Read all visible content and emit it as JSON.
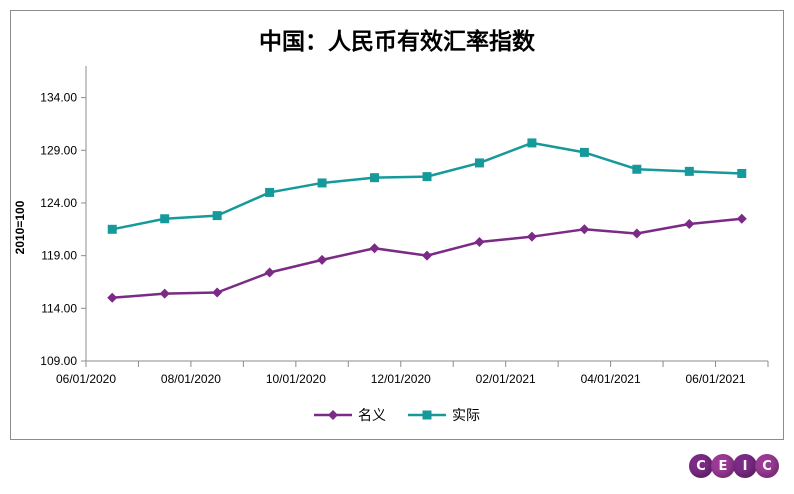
{
  "chart_data": {
    "type": "line",
    "title": "中国：人民币有效汇率指数",
    "ylabel": "2010=100",
    "xlabel": "",
    "ylim": [
      109,
      137
    ],
    "yticks": [
      "109.00",
      "114.00",
      "119.00",
      "124.00",
      "129.00",
      "134.00"
    ],
    "yticks_values": [
      109,
      114,
      119,
      124,
      129,
      134
    ],
    "xtick_labels": [
      "06/01/2020",
      "08/01/2020",
      "10/01/2020",
      "12/01/2020",
      "02/01/2021",
      "04/01/2021",
      "06/01/2021"
    ],
    "x": [
      "2020-06",
      "2020-07",
      "2020-08",
      "2020-09",
      "2020-10",
      "2020-11",
      "2020-12",
      "2021-01",
      "2021-02",
      "2021-03",
      "2021-04",
      "2021-05",
      "2021-06"
    ],
    "series": [
      {
        "name": "名义",
        "color": "#7b2a85",
        "marker": "diamond",
        "values": [
          115.0,
          115.4,
          115.5,
          117.4,
          118.6,
          119.7,
          119.0,
          120.3,
          120.8,
          121.5,
          121.1,
          122.0,
          122.5
        ]
      },
      {
        "name": "实际",
        "color": "#16999a",
        "marker": "square",
        "values": [
          121.5,
          122.5,
          122.8,
          125.0,
          125.9,
          126.4,
          126.5,
          127.8,
          129.7,
          128.8,
          127.2,
          127.0,
          126.8
        ]
      }
    ],
    "grid": false,
    "legend_position": "bottom"
  },
  "logo": {
    "letters": [
      "C",
      "E",
      "I",
      "C"
    ],
    "colors": [
      "#7b2a85",
      "#9b3a95",
      "#7b2a85",
      "#9b3a95"
    ]
  }
}
